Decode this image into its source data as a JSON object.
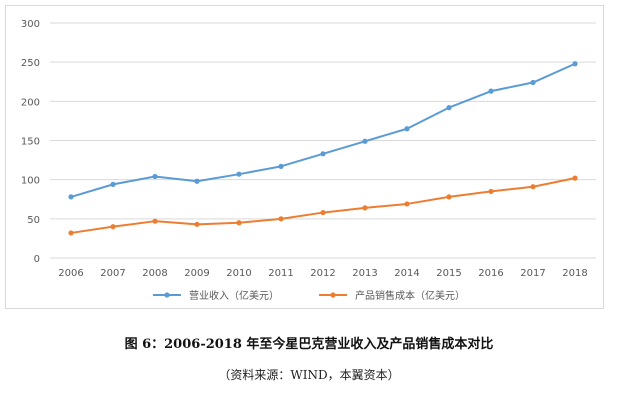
{
  "chart_data": {
    "type": "line",
    "categories": [
      "2006",
      "2007",
      "2008",
      "2009",
      "2010",
      "2011",
      "2012",
      "2013",
      "2014",
      "2015",
      "2016",
      "2017",
      "2018"
    ],
    "series": [
      {
        "name": "营业收入（亿美元）",
        "color": "#5b9bd5",
        "values": [
          78,
          94,
          104,
          98,
          107,
          117,
          133,
          149,
          165,
          192,
          213,
          224,
          248
        ]
      },
      {
        "name": "产品销售成本（亿美元）",
        "color": "#ed7d31",
        "values": [
          32,
          40,
          47,
          43,
          45,
          50,
          58,
          64,
          69,
          78,
          85,
          91,
          102
        ]
      }
    ],
    "yticks": [
      0,
      50,
      100,
      150,
      200,
      250,
      300
    ],
    "ylim": [
      0,
      300
    ],
    "grid": true,
    "legend_position": "bottom",
    "title": "",
    "xlabel": "",
    "ylabel": ""
  },
  "caption": "图 6：2006-2018 年至今星巴克营业收入及产品销售成本对比",
  "source": "（资料来源：WIND，本翼资本）",
  "gridline_color": "#d9d9d9"
}
